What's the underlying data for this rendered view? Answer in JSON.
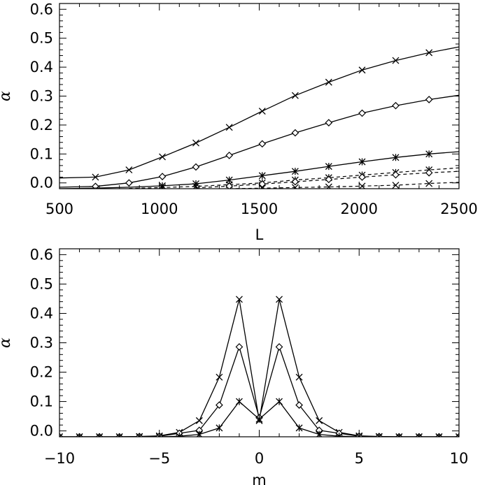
{
  "chart_data": [
    {
      "type": "line",
      "xlabel": "L",
      "ylabel": "α",
      "xlim": [
        500,
        2500
      ],
      "ylim": [
        -0.02,
        0.62
      ],
      "xticks": [
        "500",
        "1000",
        "1500",
        "2000",
        "2500"
      ],
      "yticks": [
        "0.0",
        "0.1",
        "0.2",
        "0.3",
        "0.4",
        "0.5",
        "0.6"
      ],
      "xtick_values": [
        500,
        1000,
        1500,
        2000,
        2500
      ],
      "ytick_values": [
        0.0,
        0.1,
        0.2,
        0.3,
        0.4,
        0.5,
        0.6
      ],
      "x_minor_step": 100,
      "y_minor_step": 0.02,
      "grid": false,
      "series": [
        {
          "style": "solid",
          "marker": "x",
          "x": [
            500,
            680,
            848,
            1015,
            1183,
            1350,
            1515,
            1680,
            1848,
            2015,
            2183,
            2350,
            2500
          ],
          "y": [
            0.017,
            0.02,
            0.045,
            0.09,
            0.138,
            0.192,
            0.248,
            0.302,
            0.348,
            0.39,
            0.423,
            0.45,
            0.47
          ],
          "markers_at": [
            1,
            2,
            3,
            4,
            5,
            6,
            7,
            8,
            9,
            10,
            11
          ]
        },
        {
          "style": "solid",
          "marker": "diamond",
          "x": [
            500,
            680,
            848,
            1015,
            1183,
            1350,
            1515,
            1680,
            1848,
            2015,
            2183,
            2350,
            2500
          ],
          "y": [
            -0.015,
            -0.012,
            0.0,
            0.022,
            0.055,
            0.095,
            0.135,
            0.173,
            0.208,
            0.241,
            0.267,
            0.288,
            0.303
          ],
          "markers_at": [
            1,
            2,
            3,
            4,
            5,
            6,
            7,
            8,
            9,
            10,
            11
          ]
        },
        {
          "style": "solid",
          "marker": "asterisk",
          "x": [
            500,
            680,
            848,
            1015,
            1183,
            1350,
            1515,
            1680,
            1848,
            2015,
            2183,
            2350,
            2500
          ],
          "y": [
            -0.02,
            -0.018,
            -0.015,
            -0.01,
            -0.003,
            0.01,
            0.025,
            0.04,
            0.057,
            0.073,
            0.088,
            0.1,
            0.108
          ],
          "markers_at": [
            3,
            4,
            5,
            6,
            7,
            8,
            9,
            10,
            11
          ]
        },
        {
          "style": "dashed",
          "marker": "asterisk",
          "x": [
            848,
            1015,
            1183,
            1350,
            1515,
            1680,
            1848,
            2015,
            2183,
            2350,
            2500
          ],
          "y": [
            -0.019,
            -0.016,
            -0.012,
            -0.006,
            0.0,
            0.01,
            0.018,
            0.027,
            0.036,
            0.045,
            0.052
          ],
          "markers_at": [
            1,
            2,
            3,
            4,
            5,
            6,
            7,
            8,
            9
          ]
        },
        {
          "style": "dashed",
          "marker": "diamond",
          "x": [
            1183,
            1350,
            1515,
            1680,
            1848,
            2015,
            2183,
            2350,
            2500
          ],
          "y": [
            -0.017,
            -0.011,
            -0.004,
            0.004,
            0.012,
            0.02,
            0.028,
            0.035,
            0.04
          ],
          "markers_at": [
            1,
            2,
            3,
            4,
            5,
            6,
            7
          ]
        },
        {
          "style": "dashed",
          "marker": "x",
          "x": [
            1350,
            1515,
            1680,
            1848,
            2015,
            2183,
            2350,
            2500
          ],
          "y": [
            -0.02,
            -0.018,
            -0.016,
            -0.014,
            -0.011,
            -0.008,
            -0.002,
            0.002
          ],
          "markers_at": [
            1,
            2,
            3,
            4,
            5,
            6
          ]
        }
      ]
    },
    {
      "type": "line",
      "xlabel": "m",
      "ylabel": "α",
      "xlim": [
        -10,
        10
      ],
      "ylim": [
        -0.02,
        0.62
      ],
      "xticks": [
        "−10",
        "−5",
        "0",
        "5",
        "10"
      ],
      "yticks": [
        "0.0",
        "0.1",
        "0.2",
        "0.3",
        "0.4",
        "0.5",
        "0.6"
      ],
      "xtick_values": [
        -10,
        -5,
        0,
        5,
        10
      ],
      "ytick_values": [
        0.0,
        0.1,
        0.2,
        0.3,
        0.4,
        0.5,
        0.6
      ],
      "x_minor_step": 1,
      "y_minor_step": 0.02,
      "grid": false,
      "series": [
        {
          "style": "solid",
          "marker": "x",
          "x": [
            -10,
            -9,
            -8,
            -7,
            -6,
            -5,
            -4,
            -3,
            -2,
            -1,
            0,
            1,
            2,
            3,
            4,
            5,
            6,
            7,
            8,
            9,
            10
          ],
          "y": [
            -0.02,
            -0.02,
            -0.02,
            -0.02,
            -0.019,
            -0.017,
            -0.005,
            0.035,
            0.183,
            0.448,
            0.035,
            0.448,
            0.183,
            0.035,
            -0.005,
            -0.017,
            -0.019,
            -0.02,
            -0.02,
            -0.02,
            -0.02
          ]
        },
        {
          "style": "solid",
          "marker": "diamond",
          "x": [
            -10,
            -9,
            -8,
            -7,
            -6,
            -5,
            -4,
            -3,
            -2,
            -1,
            0,
            1,
            2,
            3,
            4,
            5,
            6,
            7,
            8,
            9,
            10
          ],
          "y": [
            -0.02,
            -0.02,
            -0.02,
            -0.02,
            -0.019,
            -0.018,
            -0.008,
            0.002,
            0.088,
            0.286,
            0.045,
            0.286,
            0.088,
            0.002,
            -0.008,
            -0.018,
            -0.019,
            -0.02,
            -0.02,
            -0.02,
            -0.02
          ]
        },
        {
          "style": "solid",
          "marker": "asterisk",
          "x": [
            -10,
            -9,
            -8,
            -7,
            -6,
            -5,
            -4,
            -3,
            -2,
            -1,
            0,
            1,
            2,
            3,
            4,
            5,
            6,
            7,
            8,
            9,
            10
          ],
          "y": [
            -0.02,
            -0.02,
            -0.02,
            -0.02,
            -0.02,
            -0.02,
            -0.018,
            -0.012,
            0.01,
            0.1,
            0.04,
            0.1,
            0.01,
            -0.012,
            -0.018,
            -0.02,
            -0.02,
            -0.02,
            -0.02,
            -0.02,
            -0.02
          ]
        }
      ]
    }
  ]
}
